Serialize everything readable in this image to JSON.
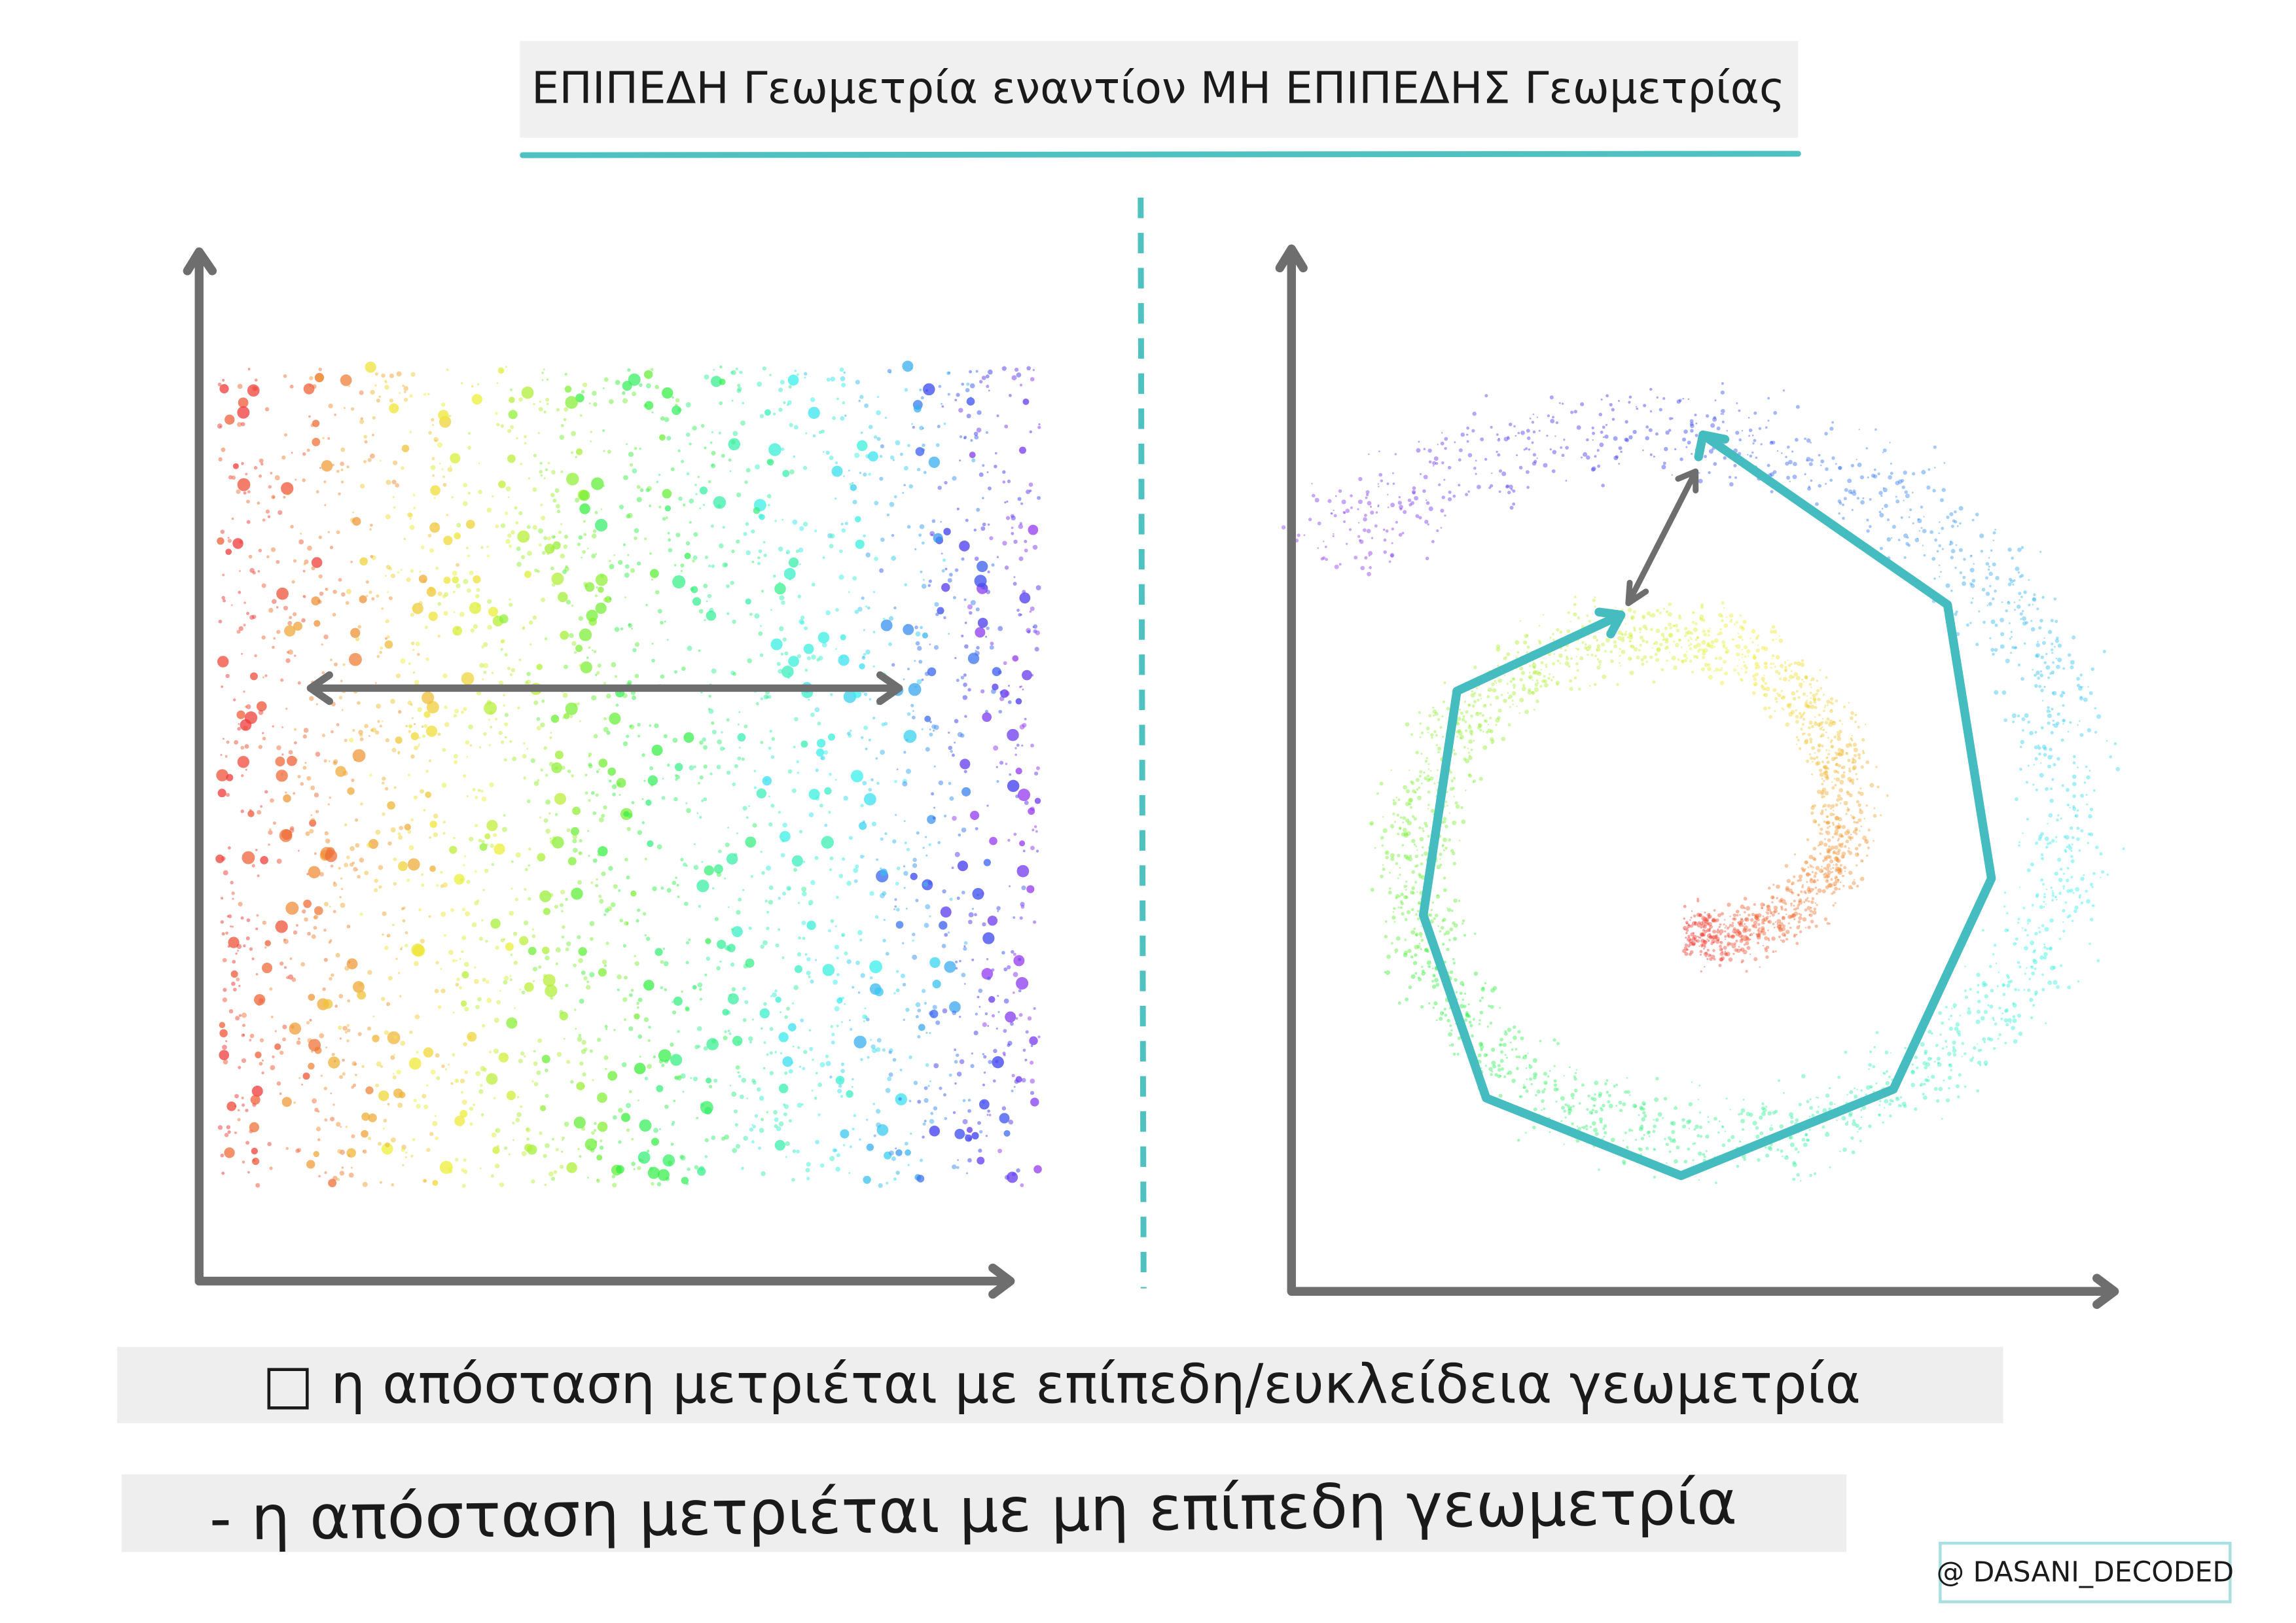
{
  "header": {
    "title": "ΕΠΙΠΕΔΗ Γεωμετρία εναντίον ΜΗ ΕΠΙΠΕΔΗΣ Γεωμετρίας"
  },
  "captions": [
    "□ η απόσταση μετριέται με επίπεδη/ευκλείδεια γεωμετρία",
    "- η απόσταση μετριέται με μη επίπεδη γεωμετρία"
  ],
  "watermark": "@ DASANI_DECODED"
}
